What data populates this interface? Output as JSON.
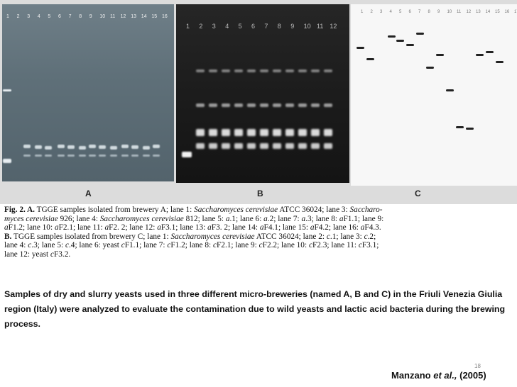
{
  "panels": {
    "a": {
      "letter": "A",
      "lanes": [
        "1",
        "2",
        "3",
        "4",
        "5",
        "6",
        "7",
        "8",
        "9",
        "10",
        "11",
        "12",
        "13",
        "14",
        "15",
        "16"
      ]
    },
    "b": {
      "letter": "B",
      "lanes": [
        "1",
        "2",
        "3",
        "4",
        "5",
        "6",
        "7",
        "8",
        "9",
        "10",
        "11",
        "12"
      ]
    },
    "c": {
      "letter": "C",
      "lanes": [
        "1",
        "2",
        "3",
        "4",
        "5",
        "6",
        "7",
        "8",
        "9",
        "10",
        "11",
        "12",
        "13",
        "14",
        "15",
        "16",
        "17"
      ]
    }
  },
  "figure_caption": {
    "lines": [
      "Fig. 2. A. TGGE samples isolated from brewery A; lane 1: Saccharomyces cerevisiae ATCC 36024; lane 3: Saccharo-",
      "myces cerevisiae 926; lane 4: Saccharomyces cerevisiae 812; lane 5: a.1; lane 6: a.2; lane 7: a.3; lane 8: aF1.1; lane 9:",
      "aF1.2; lane 10: aF2.1; lane 11: aF2. 2; lane 12: aF3.1; lane 13: aF3. 2; lane 14: aF4.1; lane 15: aF4.2; lane 16: aF4.3.",
      "B. TGGE samples isolated from brewery C; lane 1: Saccharomyces cerevisiae ATCC 36024; lane 2: c.1; lane 3: c.2;",
      "lane 4: c.3; lane 5: c.4; lane 6: yeast cF1.1; lane 7: cF1.2; lane 8: cF2.1; lane 9: cF2.2; lane 10: cF2.3; lane 11: cF3.1;",
      "lane 12: yeast cF3.2."
    ]
  },
  "summary": "Samples of dry and slurry yeasts used in three different micro-breweries (named A, B and C) in the Friuli Venezia Giulia region (Italy) were analyzed to evaluate the contamination due to wild yeasts and lactic acid bacteria during the brewing process.",
  "slide_number": "18",
  "citation": {
    "author": "Manzano",
    "etal": "et al.,",
    "year": "(2005)"
  }
}
